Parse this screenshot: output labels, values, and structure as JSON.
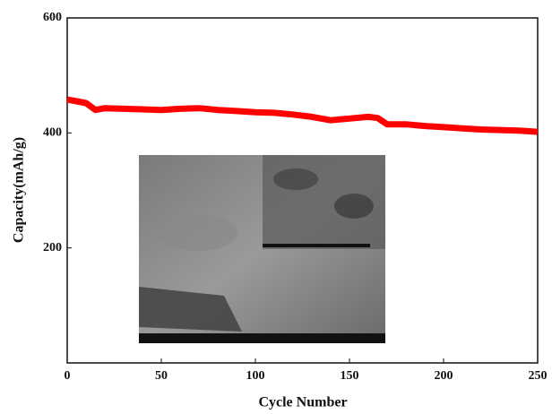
{
  "chart_data": {
    "type": "line",
    "x_label": "Cycle Number",
    "y_label": "Capacity(mAh/g)",
    "x": [
      0,
      5,
      10,
      15,
      20,
      30,
      40,
      50,
      60,
      70,
      80,
      90,
      100,
      110,
      120,
      130,
      140,
      150,
      160,
      165,
      170,
      180,
      190,
      200,
      210,
      220,
      230,
      240,
      250
    ],
    "values": [
      458,
      455,
      452,
      440,
      443,
      442,
      441,
      440,
      442,
      443,
      440,
      438,
      436,
      435,
      432,
      428,
      422,
      425,
      428,
      426,
      415,
      415,
      412,
      410,
      408,
      406,
      405,
      404,
      402
    ],
    "color": "#ff0000",
    "xlim": [
      0,
      250
    ],
    "xticks": [
      0,
      50,
      100,
      150,
      200,
      250
    ],
    "ylim": [
      0,
      600
    ],
    "yticks": [
      200,
      400,
      600
    ]
  }
}
